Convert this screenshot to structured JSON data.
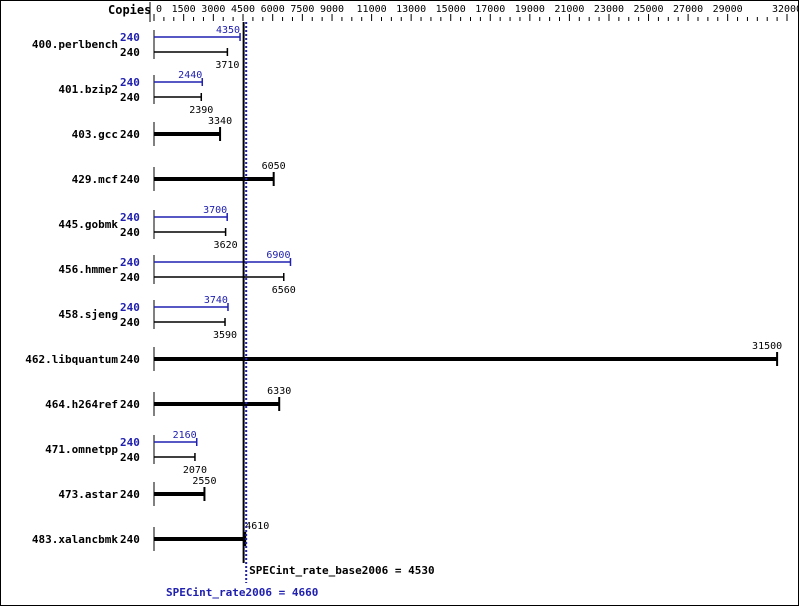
{
  "chart_data": {
    "type": "bar",
    "orientation": "horizontal",
    "axis_label": "Copies",
    "xlim": [
      0,
      32000
    ],
    "ticks": [
      0,
      1500,
      3000,
      4500,
      6000,
      7500,
      9000,
      11000,
      13000,
      15000,
      17000,
      19000,
      21000,
      23000,
      25000,
      27000,
      29000,
      32000
    ],
    "colors": {
      "base": "#000000",
      "peak": "#2020b0"
    },
    "benchmarks": [
      {
        "name": "400.perlbench",
        "peak_copies": "240",
        "peak": 4350,
        "base_copies": "240",
        "base": 3710
      },
      {
        "name": "401.bzip2",
        "peak_copies": "240",
        "peak": 2440,
        "base_copies": "240",
        "base": 2390
      },
      {
        "name": "403.gcc",
        "base_copies": "240",
        "base": 3340
      },
      {
        "name": "429.mcf",
        "base_copies": "240",
        "base": 6050
      },
      {
        "name": "445.gobmk",
        "peak_copies": "240",
        "peak": 3700,
        "base_copies": "240",
        "base": 3620
      },
      {
        "name": "456.hmmer",
        "peak_copies": "240",
        "peak": 6900,
        "base_copies": "240",
        "base": 6560
      },
      {
        "name": "458.sjeng",
        "peak_copies": "240",
        "peak": 3740,
        "base_copies": "240",
        "base": 3590
      },
      {
        "name": "462.libquantum",
        "base_copies": "240",
        "base": 31500
      },
      {
        "name": "464.h264ref",
        "base_copies": "240",
        "base": 6330
      },
      {
        "name": "471.omnetpp",
        "peak_copies": "240",
        "peak": 2160,
        "base_copies": "240",
        "base": 2070
      },
      {
        "name": "473.astar",
        "base_copies": "240",
        "base": 2550
      },
      {
        "name": "483.xalancbmk",
        "base_copies": "240",
        "base": 4610
      }
    ],
    "base_summary": {
      "label": "SPECint_rate_base2006 = 4530",
      "value": 4530
    },
    "peak_summary": {
      "label": "SPECint_rate2006 = 4660",
      "value": 4660
    }
  }
}
